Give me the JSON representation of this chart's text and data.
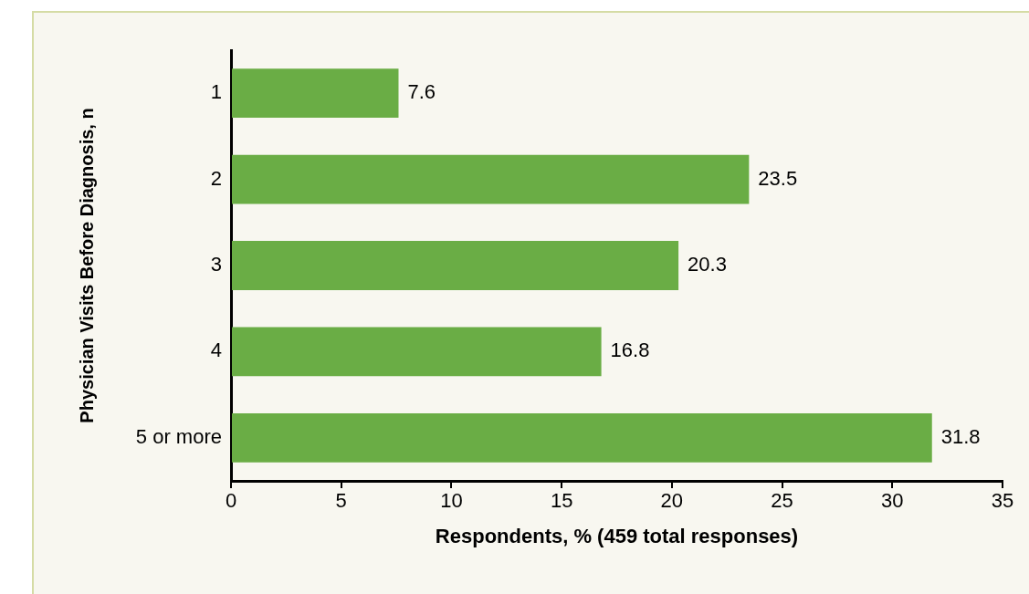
{
  "chart_data": {
    "type": "bar",
    "orientation": "horizontal",
    "categories": [
      "1",
      "2",
      "3",
      "4",
      "5 or more"
    ],
    "values": [
      7.6,
      23.5,
      20.3,
      16.8,
      31.8
    ],
    "color": "#6aad45",
    "xlabel": "Respondents, % (459 total responses)",
    "ylabel": "Physician Visits Before Diagnosis, n",
    "xlim": [
      0,
      35
    ],
    "xticks": [
      0,
      5,
      10,
      15,
      20,
      25,
      30,
      35
    ],
    "data_labels": true
  }
}
